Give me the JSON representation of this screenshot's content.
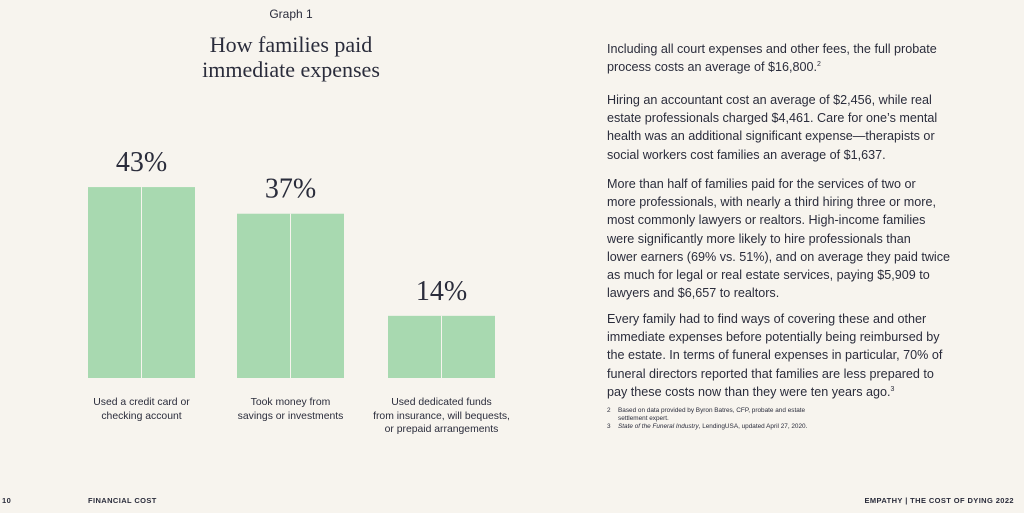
{
  "chart_data": {
    "type": "bar",
    "label": "Graph 1",
    "title": "How families paid\nimmediate expenses",
    "categories": [
      "Used a credit card or\nchecking account",
      "Took money from\nsavings or investments",
      "Used dedicated funds\nfrom insurance, will bequests,\nor prepaid arrangements"
    ],
    "values": [
      43,
      37,
      14
    ],
    "value_labels": [
      "43%",
      "37%",
      "14%"
    ],
    "color": "#a8d9b0"
  },
  "paragraphs": [
    {
      "text": "Including all court expenses and other fees, the full probate\nprocess costs an average of $16,800.",
      "sup": "2"
    },
    {
      "text": "Hiring an accountant cost an average of $2,456, while real\nestate professionals charged $4,461. Care for one’s mental\nhealth was an additional significant expense—therapists or\nsocial workers cost families an average of $1,637."
    },
    {
      "text": "More than half of families paid for the services of two or\nmore professionals, with nearly a third hiring three or more,\nmost commonly lawyers or realtors. High-income families\nwere significantly more likely to hire professionals than\nlower earners (69% vs. 51%), and on average they paid twice\nas much for legal or real estate services, paying $5,909 to\nlawyers and $6,657 to realtors."
    },
    {
      "text": "Every family had to find ways of covering these and other\nimmediate expenses before potentially being reimbursed by\nthe estate. In terms of funeral expenses in particular, 70% of\nfuneral directors reported that families are less prepared to\npay these costs now than they were ten years ago.",
      "sup": "3"
    }
  ],
  "footnotes": [
    {
      "number": "2",
      "text": "Based on data provided by Byron Batres, CFP, probate and estate\nsettlement expert."
    },
    {
      "number": "3",
      "italic": "State of the Funeral Industry",
      "text": ", LendingUSA, updated April 27, 2020."
    }
  ],
  "footer": {
    "page": "10",
    "section": "FINANCIAL COST",
    "publication": "EMPATHY | THE COST OF DYING 2022"
  }
}
